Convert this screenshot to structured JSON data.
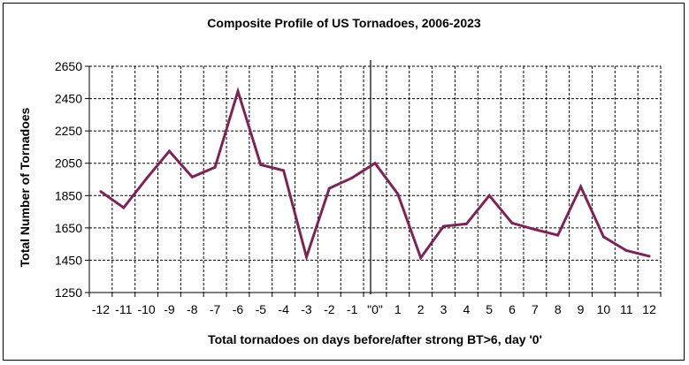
{
  "chart_data": {
    "type": "line",
    "title": "Composite Profile of US Tornadoes, 2006-2023",
    "xlabel": "Total tornadoes on days before/after strong BT>6, day '0'",
    "ylabel": "Total Number of Tornadoes",
    "categories": [
      "-12",
      "-11",
      "-10",
      "-9",
      "-8",
      "-7",
      "-6",
      "-5",
      "-4",
      "-3",
      "-2",
      "-1",
      "\"0\"",
      "1",
      "2",
      "3",
      "4",
      "5",
      "6",
      "7",
      "8",
      "9",
      "10",
      "11",
      "12"
    ],
    "series": [
      {
        "values": [
          1875,
          1775,
          1955,
          2125,
          1965,
          2025,
          2495,
          2040,
          2005,
          1470,
          1895,
          1960,
          2050,
          1860,
          1465,
          1660,
          1675,
          1850,
          1680,
          1640,
          1605,
          1905,
          1595,
          1510,
          1475
        ]
      }
    ],
    "ylim": [
      1250,
      2650
    ],
    "yticks": [
      "2650",
      "2450",
      "2250",
      "2050",
      "1850",
      "1650",
      "1450",
      "1250"
    ],
    "ytick_values": [
      2650,
      2450,
      2250,
      2050,
      1850,
      1650,
      1450,
      1250
    ],
    "grid": true,
    "line_color": "#7B2457",
    "reference_line_category": "\"0\""
  }
}
